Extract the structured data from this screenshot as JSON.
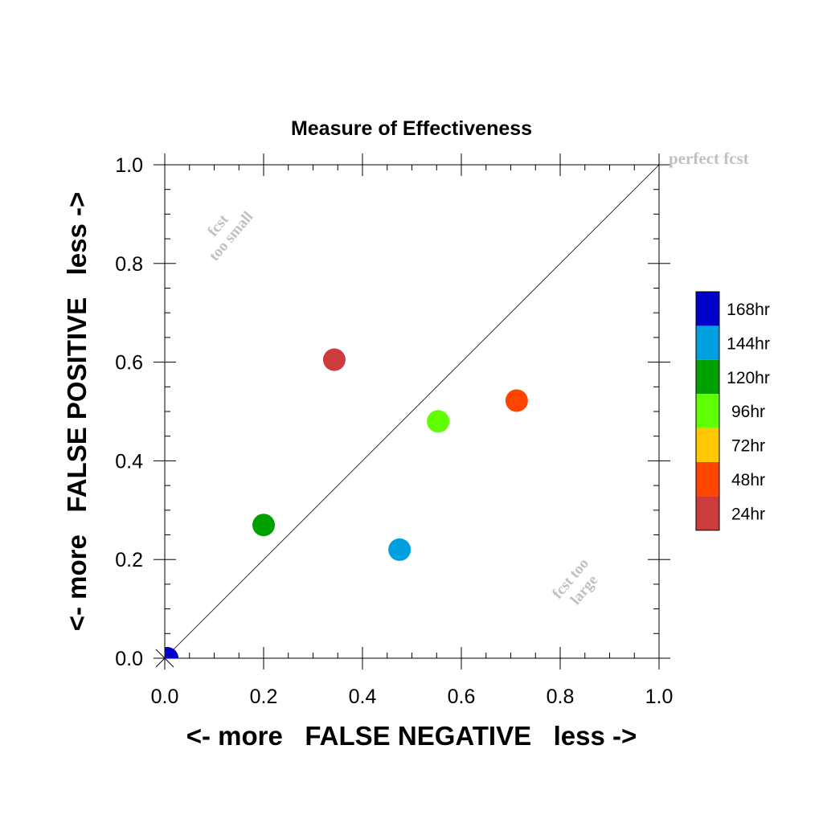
{
  "chart_data": {
    "type": "scatter",
    "title": "Measure of Effectiveness",
    "xlabel": "<- more   FALSE NEGATIVE   less ->",
    "ylabel": "<- more   FALSE POSITIVE   less ->",
    "xlim": [
      0.0,
      1.0
    ],
    "ylim": [
      0.0,
      1.0
    ],
    "x_ticks": [
      "0.0",
      "0.2",
      "0.4",
      "0.6",
      "0.8",
      "1.0"
    ],
    "y_ticks": [
      "0.0",
      "0.2",
      "0.4",
      "0.6",
      "0.8",
      "1.0"
    ],
    "grid": false,
    "legend_position": "right",
    "reference_line": {
      "from": [
        0,
        0
      ],
      "to": [
        1,
        1
      ],
      "label": "perfect fcst"
    },
    "annotations": {
      "upper_left": [
        "fcst",
        "too small"
      ],
      "lower_right": [
        "fcst too",
        "large"
      ]
    },
    "series": [
      {
        "name": "168hr",
        "color": "#0000c8",
        "x": 0.005,
        "y": 0.0
      },
      {
        "name": "144hr",
        "color": "#00a0e0",
        "x": 0.475,
        "y": 0.22
      },
      {
        "name": "120hr",
        "color": "#00a000",
        "x": 0.2,
        "y": 0.27
      },
      {
        "name": "96hr",
        "color": "#60ff00",
        "x": 0.553,
        "y": 0.48
      },
      {
        "name": "72hr",
        "color": "#ffc800",
        "x": null,
        "y": null
      },
      {
        "name": "48hr",
        "color": "#ff4400",
        "x": 0.712,
        "y": 0.522
      },
      {
        "name": "24hr",
        "color": "#cc3c3c",
        "x": 0.343,
        "y": 0.605
      }
    ]
  }
}
